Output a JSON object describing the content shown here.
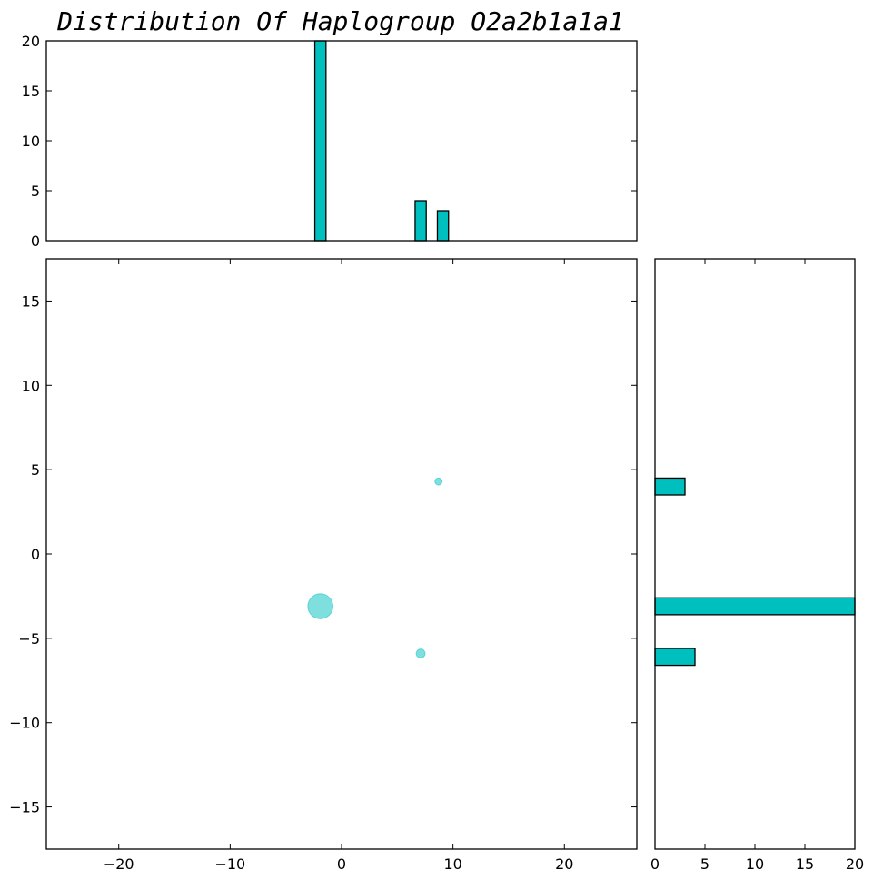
{
  "chart_data": {
    "title": "Distribution Of Haplogroup O2a2b1a1a1",
    "color": "#00BFBF",
    "panels": [
      {
        "panel": "top-histogram",
        "type": "bar",
        "orientation": "vertical",
        "xlim": [
          -26.5,
          26.5
        ],
        "ylim": [
          0,
          20
        ],
        "x_ticks": [],
        "y_ticks": [
          0,
          5,
          10,
          15,
          20
        ],
        "y_tick_labels": [
          "0",
          "5",
          "10",
          "15",
          "20"
        ],
        "bars": [
          {
            "x0": -2.4,
            "x1": -1.4,
            "value": 20
          },
          {
            "x0": 6.6,
            "x1": 7.6,
            "value": 4
          },
          {
            "x0": 8.6,
            "x1": 9.6,
            "value": 3
          }
        ]
      },
      {
        "panel": "main-scatter",
        "type": "scatter",
        "xlim": [
          -26.5,
          26.5
        ],
        "ylim": [
          -17.5,
          17.5
        ],
        "x_ticks": [
          -20,
          -10,
          0,
          10,
          20
        ],
        "x_tick_labels": [
          "−20",
          "−10",
          "0",
          "10",
          "20"
        ],
        "y_ticks": [
          -15,
          -10,
          -5,
          0,
          5,
          10,
          15
        ],
        "y_tick_labels": [
          "−15",
          "−10",
          "−5",
          "0",
          "5",
          "10",
          "15"
        ],
        "points": [
          {
            "x": -1.9,
            "y": -3.1,
            "size": 20
          },
          {
            "x": 7.1,
            "y": -5.9,
            "size": 4
          },
          {
            "x": 8.7,
            "y": 4.3,
            "size": 3
          }
        ]
      },
      {
        "panel": "right-histogram",
        "type": "bar",
        "orientation": "horizontal",
        "xlim": [
          0,
          20
        ],
        "ylim": [
          -17.5,
          17.5
        ],
        "x_ticks": [
          0,
          5,
          10,
          15,
          20
        ],
        "x_tick_labels": [
          "0",
          "5",
          "10",
          "15",
          "20"
        ],
        "y_ticks": [],
        "bars": [
          {
            "y0": 3.5,
            "y1": 4.5,
            "value": 3
          },
          {
            "y0": -3.6,
            "y1": -2.6,
            "value": 20
          },
          {
            "y0": -6.6,
            "y1": -5.6,
            "value": 4
          }
        ]
      }
    ]
  }
}
